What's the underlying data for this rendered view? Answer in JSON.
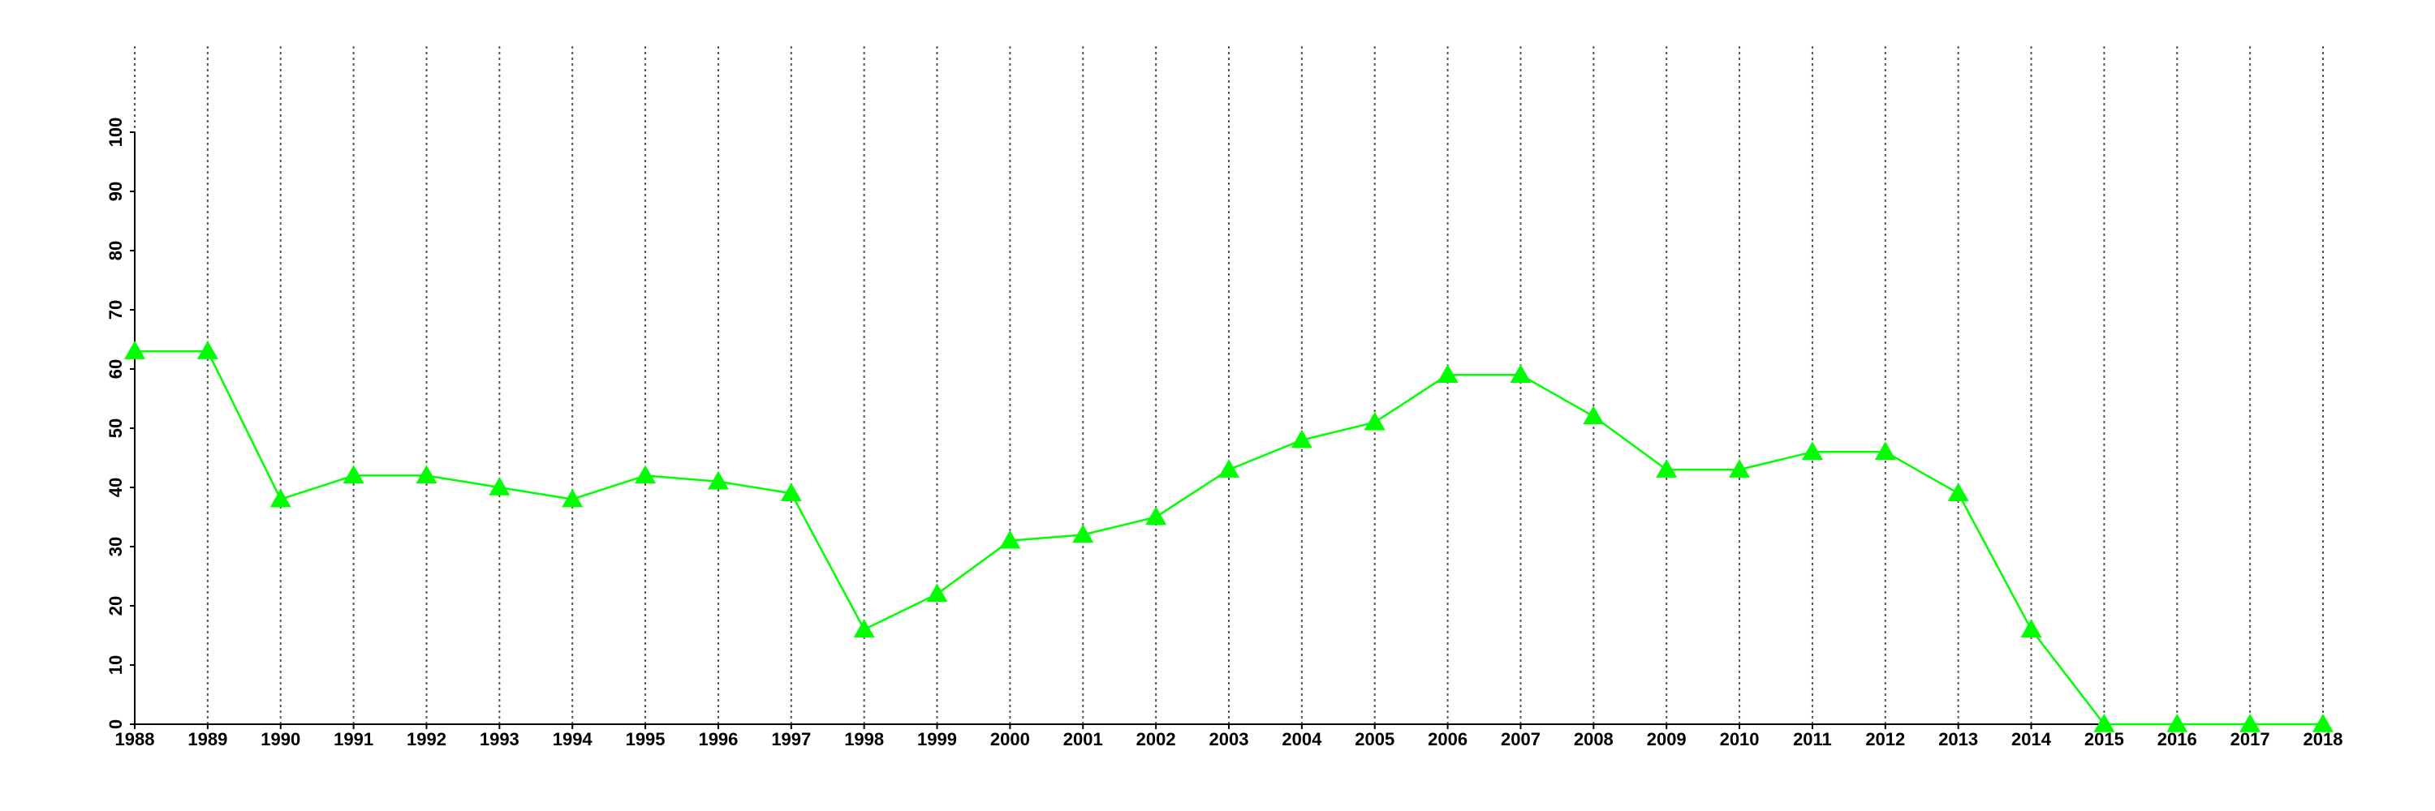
{
  "chart_data": {
    "type": "line",
    "x": [
      1988,
      1989,
      1990,
      1991,
      1992,
      1993,
      1994,
      1995,
      1996,
      1997,
      1998,
      1999,
      2000,
      2001,
      2002,
      2003,
      2004,
      2005,
      2006,
      2007,
      2008,
      2009,
      2010,
      2011,
      2012,
      2013,
      2014,
      2015,
      2016,
      2017,
      2018
    ],
    "series": [
      {
        "color": "#00ff00",
        "marker": "triangle",
        "values": [
          63,
          63,
          38,
          42,
          42,
          40,
          38,
          42,
          41,
          39,
          16,
          22,
          31,
          32,
          35,
          43,
          48,
          51,
          59,
          59,
          52,
          43,
          43,
          46,
          46,
          39,
          16,
          0,
          0,
          0,
          0
        ]
      }
    ],
    "xlim": [
      1988,
      2018
    ],
    "xticks": [
      1988,
      1989,
      1990,
      1991,
      1992,
      1993,
      1994,
      1995,
      1996,
      1997,
      1998,
      1999,
      2000,
      2001,
      2002,
      2003,
      2004,
      2005,
      2006,
      2007,
      2008,
      2009,
      2010,
      2011,
      2012,
      2013,
      2014,
      2015,
      2016,
      2017,
      2018
    ],
    "ylim": [
      0,
      100
    ],
    "yticks": [
      0,
      10,
      20,
      30,
      40,
      50,
      60,
      70,
      80,
      90,
      100
    ],
    "grid": "x"
  }
}
